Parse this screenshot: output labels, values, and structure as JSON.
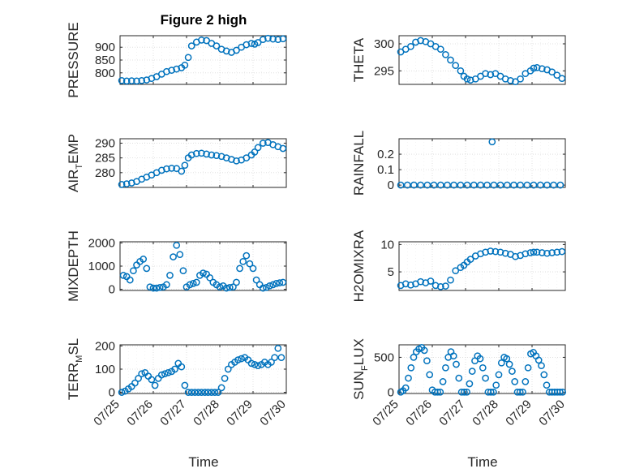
{
  "figure": {
    "title": "Figure 2 high",
    "marker_color": "#0072bd",
    "x_ticks": [
      "07/25",
      "07/26",
      "07/27",
      "07/28",
      "07/29",
      "07/30"
    ],
    "x_label": "Time"
  },
  "chart_data": [
    {
      "type": "scatter",
      "title": "Figure 2 high",
      "ylabel": "PRESSURE",
      "xlim": [
        0,
        5
      ],
      "ylim": [
        755,
        945
      ],
      "yticks": [
        800,
        850,
        900
      ],
      "ytick_labels": [
        "800",
        "850",
        "900"
      ],
      "x": [
        0.05,
        0.2,
        0.35,
        0.5,
        0.65,
        0.8,
        0.95,
        1.1,
        1.25,
        1.4,
        1.55,
        1.7,
        1.85,
        1.95,
        2.05,
        2.15,
        2.3,
        2.45,
        2.6,
        2.75,
        2.9,
        3.05,
        3.2,
        3.35,
        3.5,
        3.65,
        3.8,
        3.95,
        4.05,
        4.15,
        4.3,
        4.45,
        4.6,
        4.75,
        4.9
      ],
      "y": [
        770,
        768,
        769,
        768,
        770,
        772,
        778,
        785,
        795,
        805,
        810,
        815,
        820,
        830,
        860,
        905,
        920,
        928,
        926,
        915,
        905,
        892,
        885,
        880,
        888,
        900,
        910,
        915,
        912,
        918,
        930,
        935,
        932,
        930,
        933
      ]
    },
    {
      "type": "scatter",
      "ylabel": "THETA",
      "xlim": [
        0,
        5
      ],
      "ylim": [
        292.5,
        301.5
      ],
      "yticks": [
        295,
        300
      ],
      "ytick_labels": [
        "295",
        "300"
      ],
      "x": [
        0.05,
        0.2,
        0.35,
        0.5,
        0.65,
        0.8,
        0.95,
        1.1,
        1.25,
        1.4,
        1.55,
        1.7,
        1.85,
        1.95,
        2.05,
        2.15,
        2.3,
        2.45,
        2.6,
        2.75,
        2.9,
        3.05,
        3.2,
        3.35,
        3.5,
        3.65,
        3.8,
        3.95,
        4.05,
        4.15,
        4.3,
        4.45,
        4.6,
        4.75,
        4.9
      ],
      "y": [
        298.5,
        299.0,
        299.5,
        300.3,
        300.6,
        300.4,
        300.0,
        299.5,
        299.0,
        298.0,
        297.0,
        296.0,
        295.0,
        294.0,
        293.5,
        293.3,
        293.5,
        294.0,
        294.5,
        294.3,
        294.5,
        294.0,
        293.5,
        293.2,
        293.0,
        293.5,
        294.5,
        295.0,
        295.5,
        295.6,
        295.4,
        295.2,
        294.8,
        294.2,
        293.6
      ]
    },
    {
      "type": "scatter",
      "ylabel_parts": [
        "AIR",
        "T",
        "EMP"
      ],
      "xlim": [
        0,
        5
      ],
      "ylim": [
        275,
        291.5
      ],
      "yticks": [
        280,
        285,
        290
      ],
      "ytick_labels": [
        "280",
        "285",
        "290"
      ],
      "x": [
        0.05,
        0.2,
        0.35,
        0.5,
        0.65,
        0.8,
        0.95,
        1.1,
        1.25,
        1.4,
        1.55,
        1.7,
        1.85,
        1.95,
        2.05,
        2.15,
        2.3,
        2.45,
        2.6,
        2.75,
        2.9,
        3.05,
        3.2,
        3.35,
        3.5,
        3.65,
        3.8,
        3.95,
        4.05,
        4.15,
        4.3,
        4.45,
        4.6,
        4.75,
        4.9
      ],
      "y": [
        276.0,
        276.2,
        276.5,
        277.0,
        277.8,
        278.5,
        279.2,
        280.0,
        280.8,
        281.3,
        281.5,
        281.4,
        280.5,
        282.5,
        285.0,
        286.0,
        286.5,
        286.6,
        286.3,
        286.0,
        285.8,
        285.5,
        285.0,
        284.5,
        284.0,
        284.3,
        285.0,
        286.0,
        287.0,
        288.5,
        290.0,
        290.2,
        289.5,
        288.8,
        288.2
      ]
    },
    {
      "type": "scatter",
      "ylabel": "RAINFALL",
      "xlim": [
        0,
        5
      ],
      "ylim": [
        -0.015,
        0.3
      ],
      "yticks": [
        0,
        0.1,
        0.2
      ],
      "ytick_labels": [
        "0",
        "0.1",
        "0.2"
      ],
      "x": [
        0.05,
        0.25,
        0.45,
        0.65,
        0.85,
        1.05,
        1.25,
        1.45,
        1.65,
        1.85,
        2.05,
        2.25,
        2.45,
        2.65,
        2.85,
        3.05,
        3.25,
        3.45,
        3.65,
        3.85,
        4.05,
        4.25,
        4.45,
        4.65,
        4.85,
        2.8
      ],
      "y": [
        0,
        0,
        0,
        0,
        0,
        0,
        0,
        0,
        0,
        0,
        0,
        0,
        0,
        0,
        0,
        0,
        0,
        0,
        0,
        0,
        0,
        0,
        0,
        0,
        0,
        0.28
      ]
    },
    {
      "type": "scatter",
      "ylabel": "MIXDEPTH",
      "xlim": [
        0,
        5
      ],
      "ylim": [
        -50,
        2050
      ],
      "yticks": [
        0,
        1000,
        2000
      ],
      "ytick_labels": [
        "0",
        "1000",
        "2000"
      ],
      "x": [
        0.1,
        0.2,
        0.3,
        0.4,
        0.5,
        0.6,
        0.7,
        0.8,
        0.9,
        1.0,
        1.1,
        1.2,
        1.3,
        1.4,
        1.5,
        1.6,
        1.7,
        1.8,
        1.9,
        2.0,
        2.1,
        2.2,
        2.3,
        2.4,
        2.5,
        2.6,
        2.7,
        2.8,
        2.9,
        3.0,
        3.1,
        3.2,
        3.3,
        3.4,
        3.5,
        3.6,
        3.7,
        3.8,
        3.9,
        4.0,
        4.1,
        4.2,
        4.3,
        4.4,
        4.5,
        4.6,
        4.7,
        4.8,
        4.9
      ],
      "y": [
        600,
        550,
        400,
        800,
        1050,
        1200,
        1300,
        900,
        100,
        50,
        50,
        80,
        100,
        200,
        600,
        1400,
        1900,
        1500,
        800,
        100,
        200,
        250,
        300,
        600,
        700,
        650,
        500,
        300,
        200,
        100,
        150,
        50,
        80,
        100,
        300,
        900,
        1200,
        1450,
        1100,
        900,
        400,
        200,
        50,
        80,
        150,
        200,
        250,
        280,
        300
      ]
    },
    {
      "type": "scatter",
      "ylabel": "H2OMIXRA",
      "xlim": [
        0,
        5
      ],
      "ylim": [
        1.6,
        10.5
      ],
      "yticks": [
        5,
        10
      ],
      "ytick_labels": [
        "5",
        "10"
      ],
      "x": [
        0.05,
        0.2,
        0.35,
        0.5,
        0.65,
        0.8,
        0.95,
        1.1,
        1.25,
        1.4,
        1.55,
        1.7,
        1.85,
        1.95,
        2.05,
        2.15,
        2.3,
        2.45,
        2.6,
        2.75,
        2.9,
        3.05,
        3.2,
        3.35,
        3.5,
        3.65,
        3.8,
        3.95,
        4.05,
        4.15,
        4.3,
        4.45,
        4.6,
        4.75,
        4.9
      ],
      "y": [
        2.5,
        2.8,
        2.6,
        2.8,
        3.2,
        3.0,
        3.3,
        2.5,
        2.3,
        2.4,
        3.5,
        5.2,
        5.8,
        6.2,
        6.8,
        7.3,
        7.9,
        8.3,
        8.6,
        8.8,
        8.7,
        8.6,
        8.4,
        8.2,
        7.8,
        8.0,
        8.3,
        8.5,
        8.6,
        8.6,
        8.5,
        8.4,
        8.5,
        8.6,
        8.7
      ]
    },
    {
      "type": "scatter",
      "ylabel_parts": [
        "TERR",
        "M",
        "SL"
      ],
      "xlim": [
        0,
        5
      ],
      "ylim": [
        -5,
        205
      ],
      "yticks": [
        0,
        100,
        200
      ],
      "ytick_labels": [
        "0",
        "100",
        "200"
      ],
      "x": [
        0.05,
        0.15,
        0.25,
        0.35,
        0.45,
        0.55,
        0.65,
        0.75,
        0.85,
        0.95,
        1.05,
        1.15,
        1.25,
        1.35,
        1.45,
        1.55,
        1.65,
        1.75,
        1.85,
        1.95,
        2.05,
        2.15,
        2.25,
        2.35,
        2.45,
        2.55,
        2.65,
        2.75,
        2.85,
        2.95,
        3.05,
        3.15,
        3.25,
        3.35,
        3.45,
        3.55,
        3.65,
        3.75,
        3.85,
        3.95,
        4.05,
        4.15,
        4.25,
        4.35,
        4.45,
        4.55,
        4.65,
        4.75,
        4.85
      ],
      "y": [
        0,
        5,
        15,
        25,
        40,
        60,
        80,
        85,
        70,
        55,
        30,
        60,
        75,
        80,
        85,
        90,
        100,
        125,
        110,
        30,
        0,
        0,
        0,
        0,
        0,
        0,
        0,
        0,
        0,
        0,
        20,
        60,
        100,
        120,
        130,
        140,
        145,
        150,
        140,
        125,
        120,
        115,
        120,
        130,
        120,
        130,
        150,
        190,
        150
      ]
    },
    {
      "type": "scatter",
      "ylabel_parts": [
        "SUN",
        "F",
        "LUX"
      ],
      "xlim": [
        0,
        5
      ],
      "ylim": [
        -20,
        680
      ],
      "yticks": [
        0,
        500
      ],
      "ytick_labels": [
        "0",
        "500"
      ],
      "x": [
        0.05,
        0.12,
        0.2,
        0.28,
        0.36,
        0.44,
        0.52,
        0.6,
        0.68,
        0.76,
        0.84,
        0.92,
        1.0,
        1.08,
        1.16,
        1.24,
        1.32,
        1.4,
        1.48,
        1.56,
        1.64,
        1.72,
        1.8,
        1.88,
        1.96,
        2.04,
        2.12,
        2.2,
        2.28,
        2.36,
        2.44,
        2.52,
        2.6,
        2.68,
        2.76,
        2.84,
        2.92,
        3.0,
        3.08,
        3.16,
        3.24,
        3.32,
        3.4,
        3.48,
        3.56,
        3.64,
        3.72,
        3.8,
        3.88,
        3.96,
        4.04,
        4.12,
        4.2,
        4.28,
        4.36,
        4.44,
        4.52,
        4.6,
        4.68,
        4.76,
        4.84,
        4.92
      ],
      "y": [
        0,
        20,
        60,
        200,
        350,
        500,
        580,
        620,
        640,
        600,
        450,
        250,
        30,
        0,
        0,
        0,
        150,
        350,
        500,
        580,
        520,
        400,
        200,
        0,
        0,
        0,
        120,
        300,
        450,
        520,
        480,
        350,
        200,
        0,
        0,
        0,
        100,
        250,
        420,
        500,
        480,
        400,
        300,
        150,
        0,
        0,
        0,
        150,
        350,
        550,
        570,
        520,
        460,
        380,
        250,
        100,
        0,
        0,
        0,
        0,
        0,
        0
      ]
    }
  ]
}
